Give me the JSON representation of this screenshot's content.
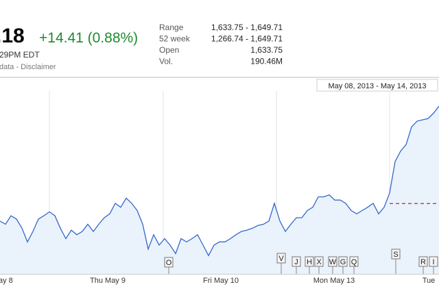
{
  "header": {
    "price": ".18",
    "change": "+14.41 (0.88%)",
    "time": "29PM EDT",
    "note": "data - Disclaimer"
  },
  "stats": [
    {
      "label": "Range",
      "value": "1,633.75 - 1,649.71"
    },
    {
      "label": "52 week",
      "value": "1,266.74 - 1,649.71"
    },
    {
      "label": "Open",
      "value": "1,633.75"
    },
    {
      "label": "Vol.",
      "value": "190.46M"
    }
  ],
  "chart_data": {
    "type": "line",
    "date_range": "May 08, 2013 - May 14, 2013",
    "x_labels": [
      "ay 8",
      "Thu May 9",
      "Fri May 10",
      "Mon May 13",
      "Tue"
    ],
    "series": [
      {
        "color": "#3366cc",
        "values": [
          1631.1,
          1630.6,
          1631.9,
          1631.4,
          1630.0,
          1627.9,
          1629.5,
          1631.4,
          1631.9,
          1632.5,
          1631.9,
          1630.0,
          1628.4,
          1629.7,
          1629.0,
          1629.5,
          1630.6,
          1629.5,
          1630.6,
          1631.6,
          1632.2,
          1633.8,
          1633.2,
          1634.6,
          1633.8,
          1632.7,
          1630.6,
          1626.8,
          1629.0,
          1627.4,
          1628.4,
          1627.4,
          1626.1,
          1628.4,
          1627.9,
          1628.4,
          1629.0,
          1627.4,
          1625.8,
          1627.4,
          1627.9,
          1627.9,
          1628.4,
          1629.0,
          1629.5,
          1629.7,
          1630.0,
          1630.4,
          1630.6,
          1631.1,
          1633.8,
          1631.1,
          1629.5,
          1630.6,
          1631.6,
          1631.6,
          1632.7,
          1633.2,
          1634.8,
          1634.8,
          1635.1,
          1634.3,
          1634.3,
          1633.8,
          1632.7,
          1632.2,
          1632.7,
          1633.2,
          1633.8,
          1632.2,
          1633.2,
          1635.4,
          1640.2,
          1641.8,
          1642.8,
          1645.5,
          1646.4,
          1646.6,
          1646.8,
          1647.6,
          1648.7
        ]
      }
    ],
    "ylim": [
      1623,
      1651
    ],
    "previous_close": 1633.77,
    "events": [
      "O",
      "V",
      "J",
      "H",
      "X",
      "W",
      "G",
      "Q",
      "S",
      "R",
      "I"
    ]
  }
}
